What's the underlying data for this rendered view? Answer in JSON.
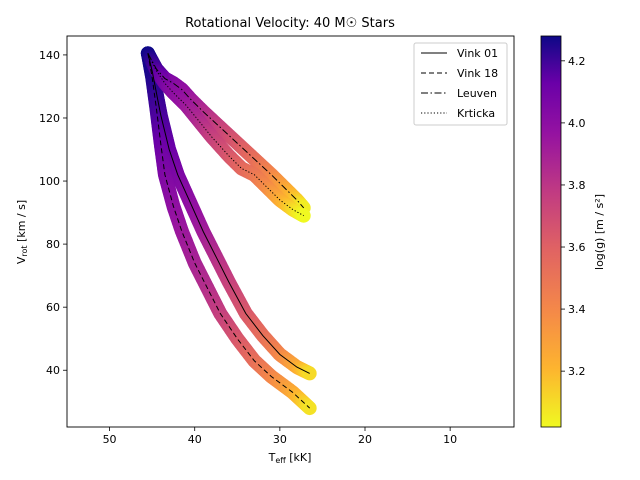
{
  "chart_data": {
    "type": "line",
    "title": "Rotational Velocity: 40 M☉ Stars",
    "xlabel_main": "T",
    "xlabel_sub": "eff",
    "xlabel_unit": " [kK]",
    "ylabel_main": "V",
    "ylabel_sub": "rot",
    "ylabel_unit": " [km / s]",
    "xlim": [
      55,
      2.5
    ],
    "ylim": [
      22,
      146
    ],
    "x_ticks": [
      50,
      40,
      30,
      20,
      10
    ],
    "y_ticks": [
      40,
      60,
      80,
      100,
      120,
      140
    ],
    "legend_position": "top-right",
    "colorbar": {
      "label": "log(g) [m / s²]",
      "range": [
        3.02,
        4.28
      ],
      "ticks": [
        3.2,
        3.4,
        3.6,
        3.8,
        4.0,
        4.2
      ],
      "colormap": "plasma_r"
    },
    "series": [
      {
        "name": "Vink 01",
        "dash": "solid",
        "x": [
          45.5,
          45.0,
          44.5,
          44.0,
          43.0,
          42.0,
          40.5,
          39.0,
          37.5,
          36.0,
          34.0,
          32.0,
          30.0,
          28.0,
          26.5
        ],
        "y": [
          140.5,
          135.0,
          128.0,
          121.0,
          110.0,
          102.0,
          93.0,
          84.0,
          76.0,
          68.0,
          58.0,
          51.0,
          45.0,
          41.0,
          39.0
        ],
        "logg": [
          4.28,
          4.26,
          4.22,
          4.17,
          4.1,
          4.03,
          3.95,
          3.88,
          3.8,
          3.72,
          3.62,
          3.52,
          3.4,
          3.25,
          3.1
        ]
      },
      {
        "name": "Vink 18",
        "dash": "dashed",
        "x": [
          45.5,
          45.0,
          44.5,
          44.0,
          43.5,
          42.5,
          41.5,
          40.0,
          38.5,
          37.0,
          35.0,
          33.0,
          31.0,
          28.5,
          26.5
        ],
        "y": [
          140.5,
          133.0,
          123.0,
          112.0,
          102.0,
          92.0,
          84.0,
          74.0,
          66.0,
          58.0,
          50.0,
          43.0,
          38.0,
          33.0,
          28.0
        ],
        "logg": [
          4.28,
          4.25,
          4.18,
          4.1,
          4.02,
          3.95,
          3.9,
          3.85,
          3.8,
          3.73,
          3.63,
          3.52,
          3.4,
          3.25,
          3.08
        ]
      },
      {
        "name": "Leuven",
        "dash": "dashdot",
        "x": [
          45.5,
          44.5,
          43.5,
          42.5,
          41.5,
          40.5,
          39.0,
          37.0,
          35.0,
          33.0,
          31.0,
          29.5,
          28.0,
          27.2
        ],
        "y": [
          140.5,
          135.5,
          132.5,
          131.0,
          129.0,
          126.0,
          122.0,
          117.0,
          112.0,
          107.0,
          102.0,
          98.0,
          94.0,
          91.5
        ],
        "logg": [
          4.28,
          4.18,
          4.08,
          4.0,
          3.95,
          3.9,
          3.82,
          3.72,
          3.62,
          3.52,
          3.4,
          3.28,
          3.15,
          3.05
        ]
      },
      {
        "name": "Krticka",
        "dash": "dotted",
        "x": [
          45.5,
          44.5,
          43.5,
          42.5,
          41.0,
          39.5,
          38.0,
          36.0,
          34.5,
          33.0,
          31.5,
          30.0,
          28.5,
          27.2
        ],
        "y": [
          140.5,
          135.0,
          131.0,
          128.0,
          124.0,
          119.0,
          114.0,
          108.0,
          104.0,
          102.0,
          98.0,
          94.0,
          91.0,
          89.0
        ],
        "logg": [
          4.28,
          4.15,
          4.05,
          3.97,
          3.9,
          3.82,
          3.73,
          3.63,
          3.55,
          3.48,
          3.38,
          3.25,
          3.12,
          3.02
        ]
      }
    ]
  }
}
